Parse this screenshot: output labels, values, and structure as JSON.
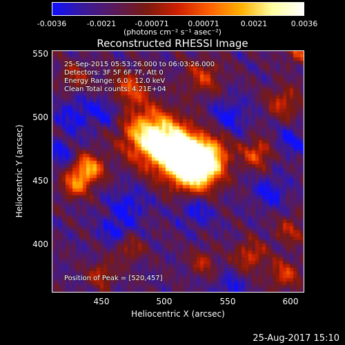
{
  "colorbar": {
    "ticks": [
      "-0.0036",
      "-0.0021",
      "-0.00071",
      "0.00071",
      "0.0021",
      "0.0036"
    ],
    "units": "(photons cm⁻² s⁻¹ asec⁻²)",
    "colors": [
      "#1010ff",
      "#3a1a9a",
      "#5a1a5a",
      "#7a1a10",
      "#d02000",
      "#ff6000",
      "#ffb000",
      "#ffffa0",
      "#ffffff"
    ]
  },
  "title": "Reconstructed RHESSI Image",
  "annotations": {
    "time": "25-Sep-2015 05:53:26.000 to 06:03:26.000",
    "detectors": "Detectors: 3F 5F 6F 7F, Att 0",
    "energy": "Energy Range: 6.0 - 12.0 keV",
    "clean": "Clean    Total counts: 4.21E+04",
    "peak": "Position of Peak = [520,457]"
  },
  "axes": {
    "xlabel": "Heliocentric X (arcsec)",
    "ylabel": "Heliocentric Y (arcsec)",
    "xticks": [
      "450",
      "500",
      "550",
      "600"
    ],
    "yticks": [
      "550",
      "500",
      "450",
      "400"
    ],
    "xrange": [
      413,
      600
    ],
    "yrange": [
      361,
      551
    ],
    "xtick_values": [
      450,
      500,
      550,
      600
    ],
    "ytick_values": [
      550,
      500,
      450,
      400
    ]
  },
  "peak": [
    520,
    457
  ],
  "footer": "25-Aug-2017 15:10"
}
